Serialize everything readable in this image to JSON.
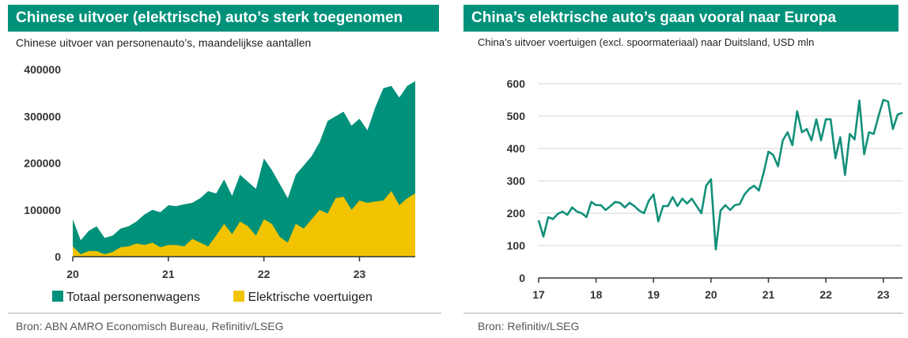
{
  "colors": {
    "banner": "#00917a",
    "total": "#00917a",
    "electric": "#f2c300",
    "line": "#13907a",
    "axis": "#333333"
  },
  "left": {
    "title": "Chinese uitvoer (elektrische) auto’s sterk toegenomen",
    "subtitle": "Chinese uitvoer van personenauto’s, maandelijkse aantallen",
    "source": "Bron: ABN AMRO Economisch Bureau, Refinitiv/LSEG"
  },
  "right": {
    "title": "China’s elektrische auto’s gaan vooral naar Europa",
    "subtitle": "China’s uitvoer voertuigen (excl. spoormateriaal) naar Duitsland, USD mln",
    "source": "Bron: Refinitiv/LSEG"
  },
  "chart_data": [
    {
      "type": "area",
      "title": "Chinese uitvoer (elektrische) auto’s sterk toegenomen",
      "subtitle": "Chinese uitvoer van personenauto’s, maandelijkse aantallen",
      "x_start": "2020-01",
      "x_tick_labels": [
        "20",
        "21",
        "22",
        "23"
      ],
      "ylim": [
        0,
        400000
      ],
      "y_ticks": [
        "0",
        "100000",
        "200000",
        "300000",
        "400000"
      ],
      "legend": "bottom",
      "series": [
        {
          "name": "Totaal personenwagens",
          "values": [
            80000,
            35000,
            55000,
            65000,
            40000,
            45000,
            60000,
            65000,
            75000,
            90000,
            100000,
            95000,
            110000,
            108000,
            112000,
            115000,
            125000,
            140000,
            135000,
            165000,
            130000,
            175000,
            160000,
            145000,
            210000,
            185000,
            155000,
            125000,
            175000,
            195000,
            215000,
            245000,
            290000,
            300000,
            310000,
            280000,
            295000,
            270000,
            320000,
            360000,
            365000,
            340000,
            365000,
            375000
          ]
        },
        {
          "name": "Elektrische voertuigen",
          "values": [
            22000,
            5000,
            12000,
            12000,
            5000,
            10000,
            20000,
            22000,
            28000,
            25000,
            30000,
            20000,
            25000,
            25000,
            22000,
            38000,
            30000,
            22000,
            45000,
            70000,
            48000,
            75000,
            65000,
            45000,
            80000,
            70000,
            42000,
            30000,
            70000,
            60000,
            80000,
            100000,
            92000,
            125000,
            128000,
            100000,
            120000,
            115000,
            118000,
            120000,
            140000,
            110000,
            125000,
            135000
          ]
        }
      ]
    },
    {
      "type": "line",
      "title": "China’s elektrische auto’s gaan vooral naar Europa",
      "subtitle": "China’s uitvoer voertuigen (excl. spoormateriaal) naar Duitsland, USD mln",
      "x_start": "2017-01",
      "x_tick_labels": [
        "17",
        "18",
        "19",
        "20",
        "21",
        "22",
        "23"
      ],
      "ylim": [
        0,
        600
      ],
      "y_ticks": [
        "0",
        "100",
        "200",
        "300",
        "400",
        "500",
        "600"
      ],
      "grid": true,
      "series": [
        {
          "values": [
            178,
            128,
            188,
            182,
            198,
            205,
            195,
            218,
            205,
            200,
            188,
            235,
            225,
            225,
            210,
            222,
            235,
            232,
            218,
            232,
            222,
            208,
            200,
            238,
            258,
            175,
            222,
            222,
            250,
            222,
            245,
            230,
            245,
            222,
            200,
            285,
            305,
            88,
            208,
            225,
            210,
            225,
            228,
            258,
            275,
            285,
            270,
            325,
            390,
            380,
            345,
            425,
            450,
            410,
            515,
            450,
            460,
            425,
            490,
            425,
            490,
            490,
            370,
            435,
            318,
            445,
            428,
            548,
            382,
            450,
            445,
            500,
            550,
            545,
            460,
            505,
            510
          ]
        }
      ]
    }
  ]
}
